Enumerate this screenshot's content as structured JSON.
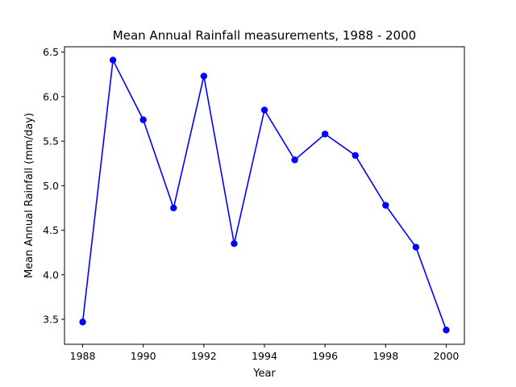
{
  "chart_data": {
    "type": "line",
    "title": "Mean Annual Rainfall measurements, 1988 - 2000",
    "xlabel": "Year",
    "ylabel": "Mean Annual Rainfall (mm/day)",
    "xlim": [
      1987.4,
      2000.6
    ],
    "ylim": [
      3.22,
      6.56
    ],
    "x_ticks": [
      1988,
      1990,
      1992,
      1994,
      1996,
      1998,
      2000
    ],
    "y_ticks": [
      3.5,
      4.0,
      4.5,
      5.0,
      5.5,
      6.0,
      6.5
    ],
    "y_tick_labels": [
      "3.5",
      "4.0",
      "4.5",
      "5.0",
      "5.5",
      "6.0",
      "6.5"
    ],
    "series": [
      {
        "color": "#0000ff",
        "marker": "circle",
        "x": [
          1988,
          1989,
          1990,
          1991,
          1992,
          1993,
          1994,
          1995,
          1996,
          1997,
          1998,
          1999,
          2000
        ],
        "y": [
          3.47,
          6.41,
          5.74,
          4.75,
          6.23,
          4.35,
          5.85,
          5.29,
          5.58,
          5.34,
          4.78,
          4.31,
          3.38
        ]
      }
    ],
    "grid": false,
    "legend": "none"
  }
}
